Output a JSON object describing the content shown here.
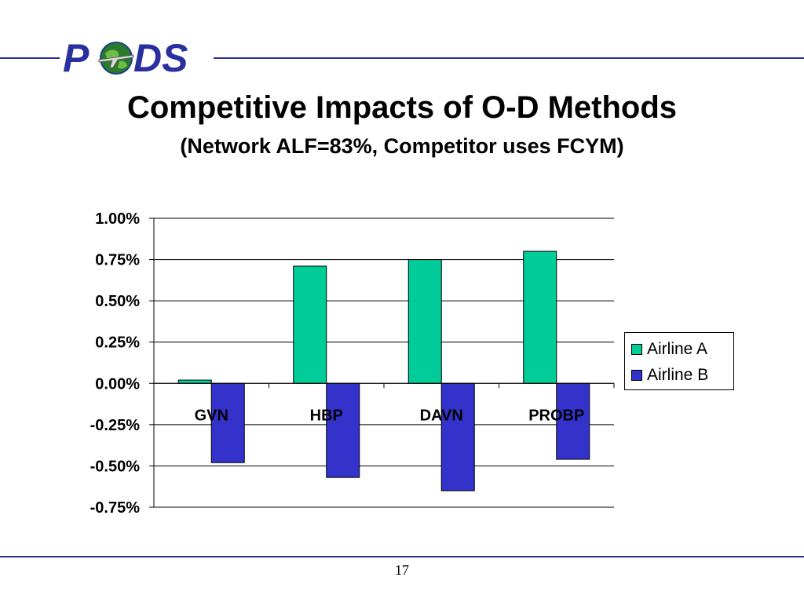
{
  "slide": {
    "logo_letters_left": "P",
    "logo_letters_right": "DS",
    "title": "Competitive Impacts of O-D Methods",
    "subtitle": "(Network ALF=83%, Competitor uses FCYM)",
    "page_number": "17",
    "accent_color": "#2a2f9e"
  },
  "chart_data": {
    "type": "bar",
    "categories": [
      "GVN",
      "HBP",
      "DAVN",
      "PROBP"
    ],
    "series": [
      {
        "name": "Airline A",
        "values": [
          0.02,
          0.71,
          0.75,
          0.8
        ],
        "color": "#00cc99"
      },
      {
        "name": "Airline B",
        "values": [
          -0.48,
          -0.57,
          -0.65,
          -0.46
        ],
        "color": "#3333cc"
      }
    ],
    "ylim": [
      -0.75,
      1.0
    ],
    "yticks": [
      1.0,
      0.75,
      0.5,
      0.25,
      0.0,
      -0.25,
      -0.5,
      -0.75
    ],
    "ytick_labels": [
      "1.00%",
      "0.75%",
      "0.50%",
      "0.25%",
      "0.00%",
      "-0.25%",
      "-0.50%",
      "-0.75%"
    ],
    "unit": "%",
    "grid": true,
    "legend_position": "right"
  }
}
